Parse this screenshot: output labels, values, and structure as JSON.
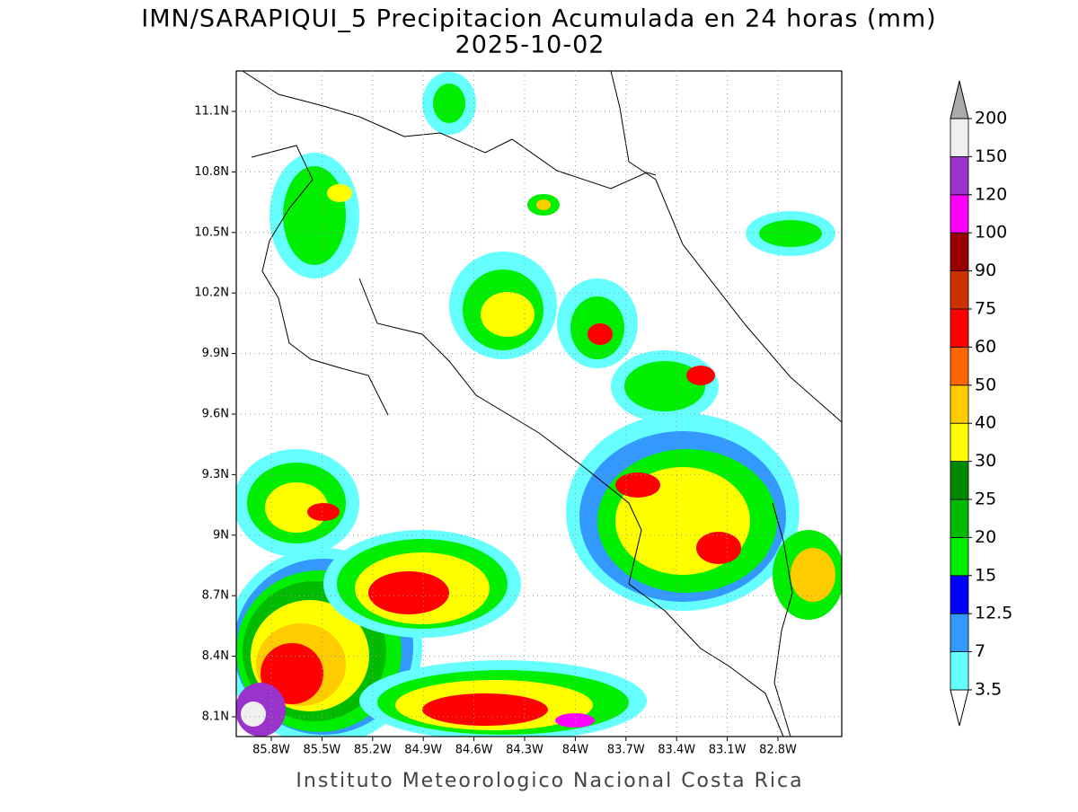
{
  "title": "IMN/SARAPIQUI_5 Precipitacion Acumulada en 24 horas (mm)",
  "subtitle": "2025-10-02",
  "footer": "Instituto Meteorologico Nacional Costa Rica",
  "map": {
    "lat_ticks": [
      {
        "value": 11.1,
        "label": "11.1N"
      },
      {
        "value": 10.8,
        "label": "10.8N"
      },
      {
        "value": 10.5,
        "label": "10.5N"
      },
      {
        "value": 10.2,
        "label": "10.2N"
      },
      {
        "value": 9.9,
        "label": "9.9N"
      },
      {
        "value": 9.6,
        "label": "9.6N"
      },
      {
        "value": 9.3,
        "label": "9.3N"
      },
      {
        "value": 9,
        "label": "9N"
      },
      {
        "value": 8.7,
        "label": "8.7N"
      },
      {
        "value": 8.4,
        "label": "8.4N"
      },
      {
        "value": 8.1,
        "label": "8.1N"
      }
    ],
    "lon_ticks": [
      {
        "value": -85.8,
        "label": "85.8W"
      },
      {
        "value": -85.5,
        "label": "85.5W"
      },
      {
        "value": -85.2,
        "label": "85.2W"
      },
      {
        "value": -84.9,
        "label": "84.9W"
      },
      {
        "value": -84.6,
        "label": "84.6W"
      },
      {
        "value": -84.3,
        "label": "84.3W"
      },
      {
        "value": -84,
        "label": "84W"
      },
      {
        "value": -83.7,
        "label": "83.7W"
      },
      {
        "value": -83.4,
        "label": "83.4W"
      },
      {
        "value": -83.1,
        "label": "83.1W"
      },
      {
        "value": -82.8,
        "label": "82.8W"
      }
    ],
    "grid": true
  },
  "colorbar": {
    "levels": [
      3.5,
      7,
      12.5,
      15,
      20,
      25,
      30,
      40,
      50,
      60,
      75,
      90,
      100,
      120,
      150,
      200
    ],
    "colors": [
      "#ffffff",
      "#66ffff",
      "#3399ff",
      "#0000ff",
      "#00ee00",
      "#00bb00",
      "#008800",
      "#ffff00",
      "#ffcc00",
      "#ff6600",
      "#ff0000",
      "#cc3300",
      "#990000",
      "#ff00ff",
      "#9933cc",
      "#f0f0f0",
      "#aaaaaa"
    ]
  }
}
